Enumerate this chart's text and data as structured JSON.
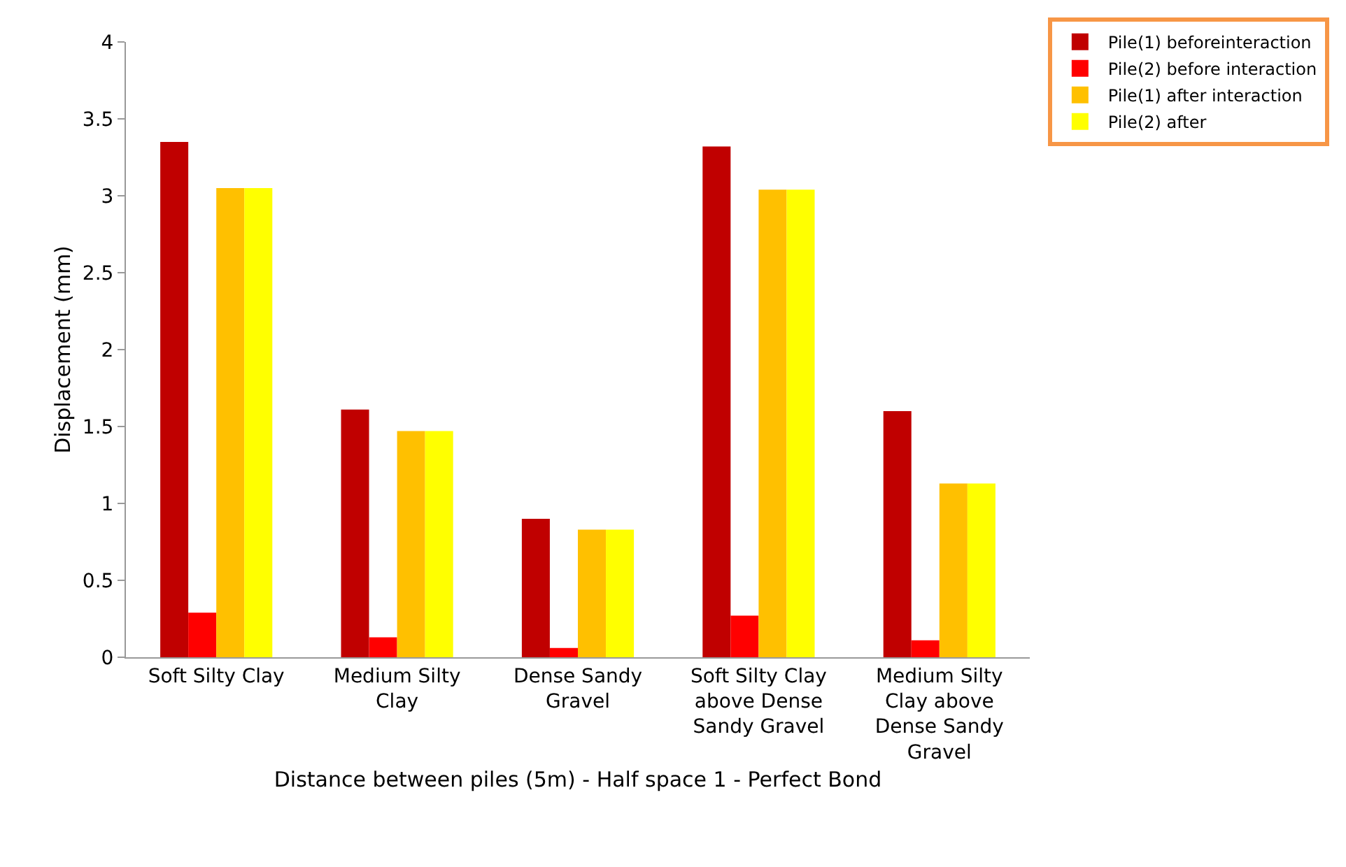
{
  "chart_data": {
    "type": "bar",
    "xlabel": "Distance between piles (5m) - Half space 1 - Perfect Bond",
    "ylabel": "Displacement (mm)",
    "categories": [
      "Soft Silty Clay",
      "Medium Silty Clay",
      "Dense Sandy Gravel",
      "Soft Silty Clay above Dense Sandy Gravel",
      "Medium Silty Clay above Dense Sandy Gravel"
    ],
    "series": [
      {
        "name": "Pile(1) beforeinteraction",
        "color": "#c00000",
        "values": [
          3.35,
          1.61,
          0.9,
          3.32,
          1.6
        ]
      },
      {
        "name": "Pile(2) before interaction",
        "color": "#ff0000",
        "values": [
          0.29,
          0.13,
          0.06,
          0.27,
          0.11
        ]
      },
      {
        "name": "Pile(1) after interaction",
        "color": "#ffc000",
        "values": [
          3.05,
          1.47,
          0.83,
          3.04,
          1.13
        ]
      },
      {
        "name": "Pile(2) after",
        "color": "#ffff00",
        "values": [
          3.05,
          1.47,
          0.83,
          3.04,
          1.13
        ]
      }
    ],
    "ylim": [
      0,
      4
    ],
    "yticks": [
      0,
      0.5,
      1,
      1.5,
      2,
      2.5,
      3,
      3.5,
      4
    ],
    "grid": false,
    "legend": "top right"
  }
}
